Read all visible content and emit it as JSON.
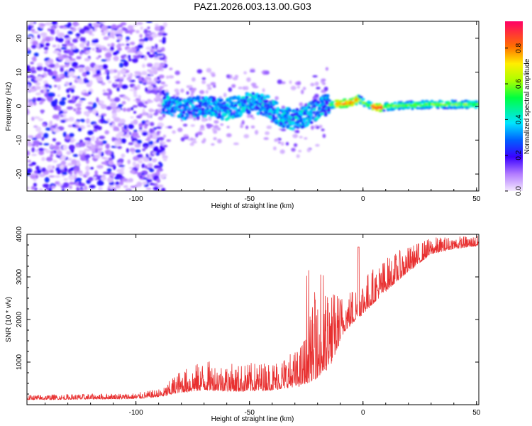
{
  "title": "PAZ1.2026.003.13.00.G03",
  "chart_data": [
    {
      "type": "heatmap",
      "name": "spectrogram",
      "xlabel": "Height of straight line (km)",
      "ylabel": "Frequency (Hz)",
      "xlim": [
        -148,
        51
      ],
      "ylim": [
        -25,
        25
      ],
      "xticks": [
        -100,
        -50,
        0,
        50
      ],
      "yticks": [
        -20,
        -10,
        0,
        10,
        20
      ],
      "colorbar": {
        "label": "Normalized spectral amplitude",
        "range": [
          0,
          0.95
        ],
        "ticks": [
          0.0,
          0.2,
          0.4,
          0.6,
          0.8
        ]
      },
      "ridge": [
        {
          "x": -87,
          "f": 1.0
        },
        {
          "x": -80,
          "f": -1.0
        },
        {
          "x": -70,
          "f": 0.0
        },
        {
          "x": -60,
          "f": -1.0
        },
        {
          "x": -50,
          "f": 1.0
        },
        {
          "x": -42,
          "f": 0.0
        },
        {
          "x": -35,
          "f": -3.5
        },
        {
          "x": -28,
          "f": -4.0
        },
        {
          "x": -23,
          "f": -2.0
        },
        {
          "x": -18,
          "f": 0.0
        },
        {
          "x": -15,
          "f": 0.5
        },
        {
          "x": -5,
          "f": 1.0
        },
        {
          "x": -2,
          "f": 2.0
        },
        {
          "x": 2,
          "f": 0.5
        },
        {
          "x": 6,
          "f": -0.5
        },
        {
          "x": 12,
          "f": 0.0
        },
        {
          "x": 30,
          "f": 0.5
        },
        {
          "x": 51,
          "f": 0.5
        }
      ]
    },
    {
      "type": "line",
      "name": "snr",
      "xlabel": "Height of straight line (km)",
      "ylabel": "SNR (10 * v/v)",
      "xlim": [
        -148,
        51
      ],
      "ylim": [
        0,
        4000
      ],
      "xticks": [
        -100,
        -50,
        0,
        50
      ],
      "yticks": [
        1000,
        2000,
        3000,
        4000
      ],
      "color": "#e83030",
      "envelope": [
        {
          "x": -148,
          "base": 150,
          "noise": 120
        },
        {
          "x": -100,
          "base": 180,
          "noise": 140
        },
        {
          "x": -88,
          "base": 250,
          "noise": 200
        },
        {
          "x": -82,
          "base": 420,
          "noise": 500
        },
        {
          "x": -70,
          "base": 550,
          "noise": 700
        },
        {
          "x": -55,
          "base": 500,
          "noise": 650
        },
        {
          "x": -40,
          "base": 550,
          "noise": 700
        },
        {
          "x": -28,
          "base": 700,
          "noise": 900
        },
        {
          "x": -22,
          "base": 1100,
          "noise": 1800
        },
        {
          "x": -15,
          "base": 1400,
          "noise": 1900
        },
        {
          "x": -8,
          "base": 2000,
          "noise": 900
        },
        {
          "x": 0,
          "base": 2400,
          "noise": 900
        },
        {
          "x": 10,
          "base": 2900,
          "noise": 800
        },
        {
          "x": 20,
          "base": 3300,
          "noise": 600
        },
        {
          "x": 30,
          "base": 3650,
          "noise": 400
        },
        {
          "x": 40,
          "base": 3750,
          "noise": 300
        },
        {
          "x": 51,
          "base": 3800,
          "noise": 250
        }
      ]
    }
  ]
}
